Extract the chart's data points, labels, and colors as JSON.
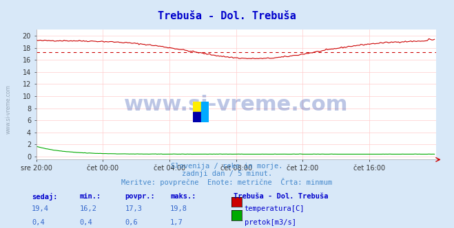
{
  "title": "Trebuša - Dol. Trebuša",
  "title_color": "#0000cc",
  "bg_color": "#d8e8f8",
  "plot_bg_color": "#ffffff",
  "grid_color": "#ffcccc",
  "text_color": "#4488cc",
  "watermark": "www.si-vreme.com",
  "subtitle_lines": [
    "Slovenija / reke in morje.",
    "zadnji dan / 5 minut.",
    "Meritve: povprečne  Enote: metrične  Črta: minmum"
  ],
  "legend_title": "Trebuša - Dol. Trebuša",
  "legend_items": [
    {
      "label": "temperatura[C]",
      "color": "#cc0000"
    },
    {
      "label": "pretok[m3/s]",
      "color": "#00aa00"
    }
  ],
  "table_headers": [
    "sedaj:",
    "min.:",
    "povpr.:",
    "maks.:"
  ],
  "table_rows": [
    [
      "19,4",
      "16,2",
      "17,3",
      "19,8"
    ],
    [
      "0,4",
      "0,4",
      "0,6",
      "1,7"
    ]
  ],
  "xticklabels": [
    "sre 20:00",
    "čet 00:00",
    "čet 04:00",
    "čet 08:00",
    "čet 12:00",
    "čet 16:00"
  ],
  "ylim": [
    -0.5,
    21
  ],
  "temp_color": "#cc0000",
  "flow_color": "#00aa00",
  "avg_line_value": 17.3,
  "temp_min": 16.2,
  "temp_max": 19.8,
  "flow_min": 0.4,
  "flow_max": 1.7,
  "logo_colors": [
    "#ffee00",
    "#00aaff",
    "#0000aa",
    "#00aaff"
  ]
}
